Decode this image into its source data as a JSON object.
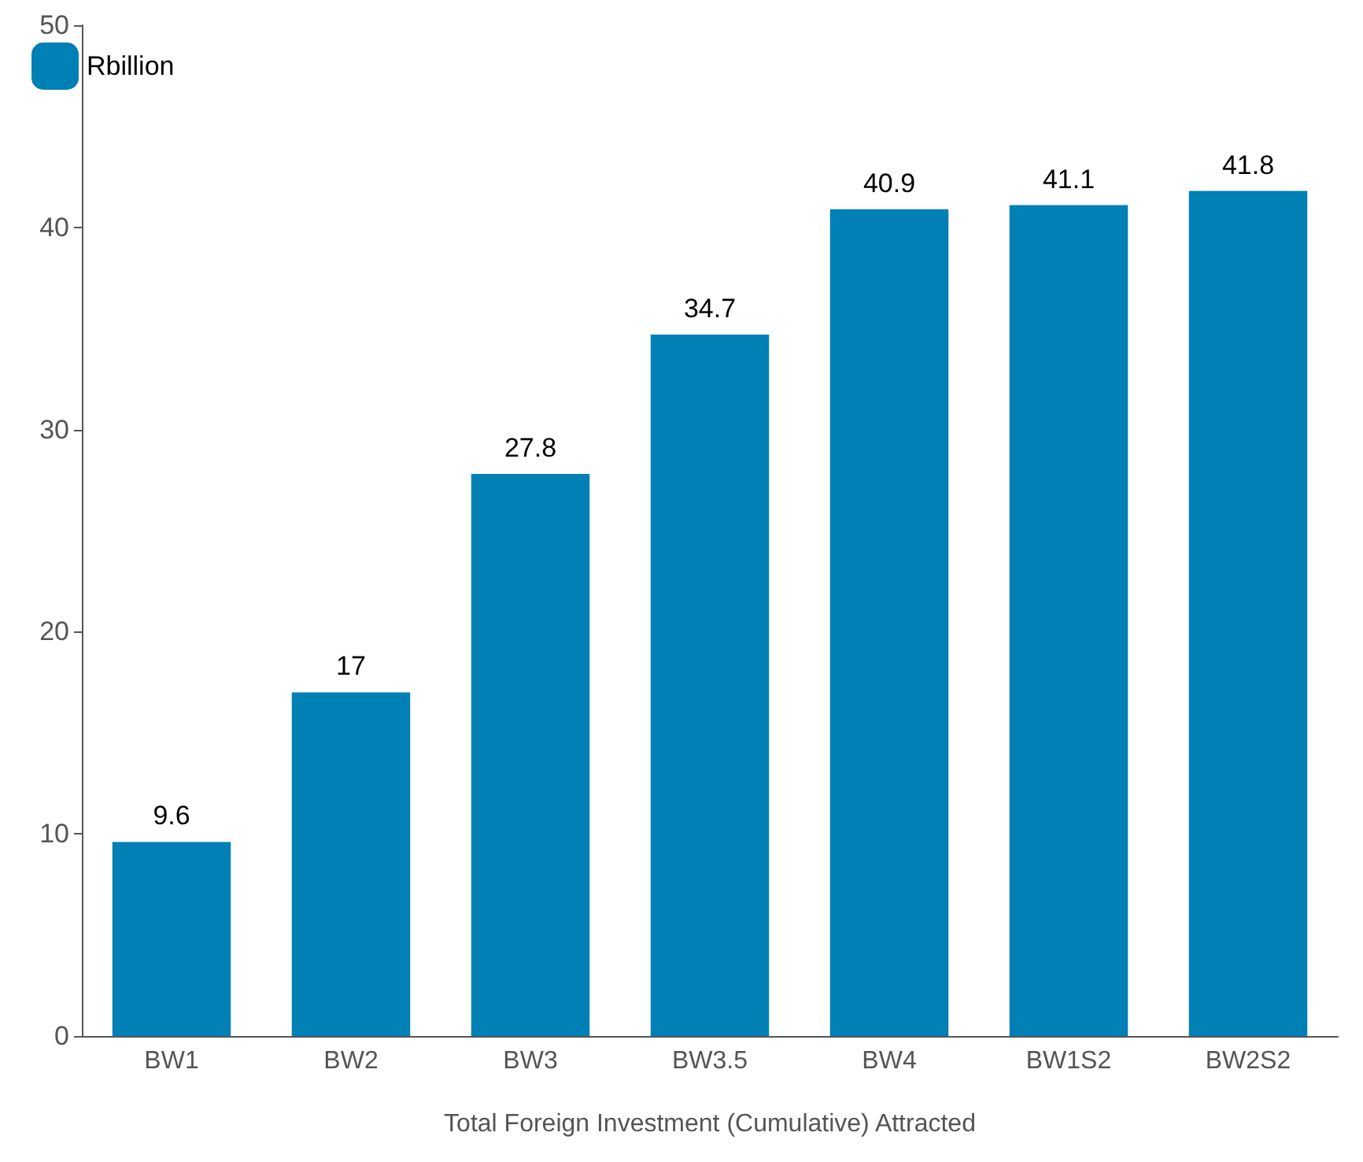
{
  "chart_data": {
    "type": "bar",
    "xlabel": "Total Foreign Investment (Cumulative) Attracted",
    "categories": [
      "BW1",
      "BW2",
      "BW3",
      "BW3.5",
      "BW4",
      "BW1S2",
      "BW2S2"
    ],
    "series": [
      {
        "name": "Rbillion",
        "color": "#0080b4",
        "values": [
          9.6,
          17,
          27.8,
          34.7,
          40.9,
          41.1,
          41.8
        ]
      }
    ],
    "ylim": [
      0,
      50
    ],
    "yticks": [
      0,
      10,
      20,
      30,
      40,
      50
    ],
    "grid": false,
    "legend": "top left",
    "data_labels": true
  }
}
